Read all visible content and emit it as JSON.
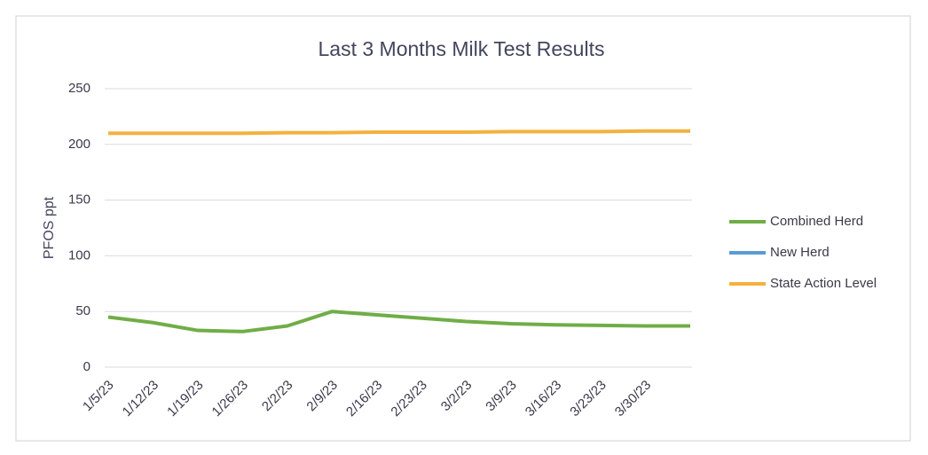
{
  "chart_data": {
    "type": "line",
    "title": "Last 3 Months Milk Test Results",
    "y_label": "PFOS ppt",
    "categories": [
      "1/5/23",
      "1/12/23",
      "1/19/23",
      "1/26/23",
      "2/2/23",
      "2/9/23",
      "2/16/23",
      "2/23/23",
      "3/2/23",
      "3/9/23",
      "3/16/23",
      "3/23/23",
      "3/30/23",
      null
    ],
    "series": [
      {
        "name": "Combined Herd",
        "color": "#70ad47",
        "values": [
          45,
          40,
          33,
          32,
          37,
          50,
          47,
          44,
          41,
          39,
          38,
          37.5,
          37,
          37
        ]
      },
      {
        "name": "New Herd",
        "color": "#5b9bd5",
        "values": [
          null,
          null,
          null,
          null,
          null,
          null,
          null,
          null,
          null,
          null,
          null,
          null,
          null,
          null
        ]
      },
      {
        "name": "State Action Level",
        "color": "#f4b13e",
        "values": [
          210,
          210,
          210,
          210,
          210.5,
          210.5,
          211,
          211,
          211,
          211.5,
          211.5,
          211.5,
          212,
          212
        ]
      }
    ],
    "ylim": [
      0,
      250
    ],
    "yticks": [
      0,
      50,
      100,
      150,
      200,
      250
    ],
    "grid": true,
    "legend": "right"
  }
}
